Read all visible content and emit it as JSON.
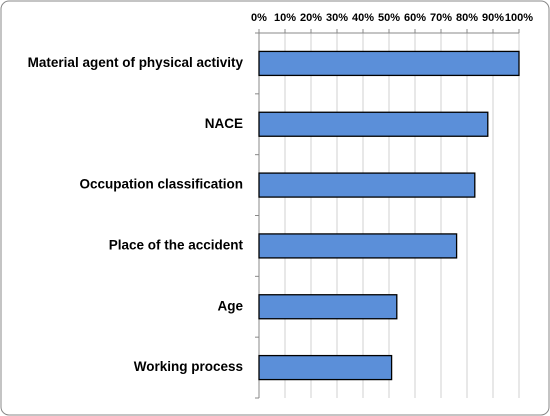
{
  "chart_data": {
    "type": "hbar",
    "categories": [
      "Material agent of physical activity",
      "NACE",
      "Occupation classification",
      "Place of the accident",
      "Age",
      "Working process"
    ],
    "values": [
      100,
      88,
      83,
      76,
      53,
      51
    ],
    "color": "#5b8fd9",
    "xlim": [
      0,
      100
    ],
    "xticks": [
      {
        "value": 0,
        "label": "0%"
      },
      {
        "value": 10,
        "label": "10%"
      },
      {
        "value": 20,
        "label": "20%"
      },
      {
        "value": 30,
        "label": "30%"
      },
      {
        "value": 40,
        "label": "40%"
      },
      {
        "value": 50,
        "label": "50%"
      },
      {
        "value": 60,
        "label": "60%"
      },
      {
        "value": 70,
        "label": "70%"
      },
      {
        "value": 80,
        "label": "80%"
      },
      {
        "value": 90,
        "label": "90%"
      },
      {
        "value": 100,
        "label": "100%"
      }
    ],
    "grid": true
  }
}
